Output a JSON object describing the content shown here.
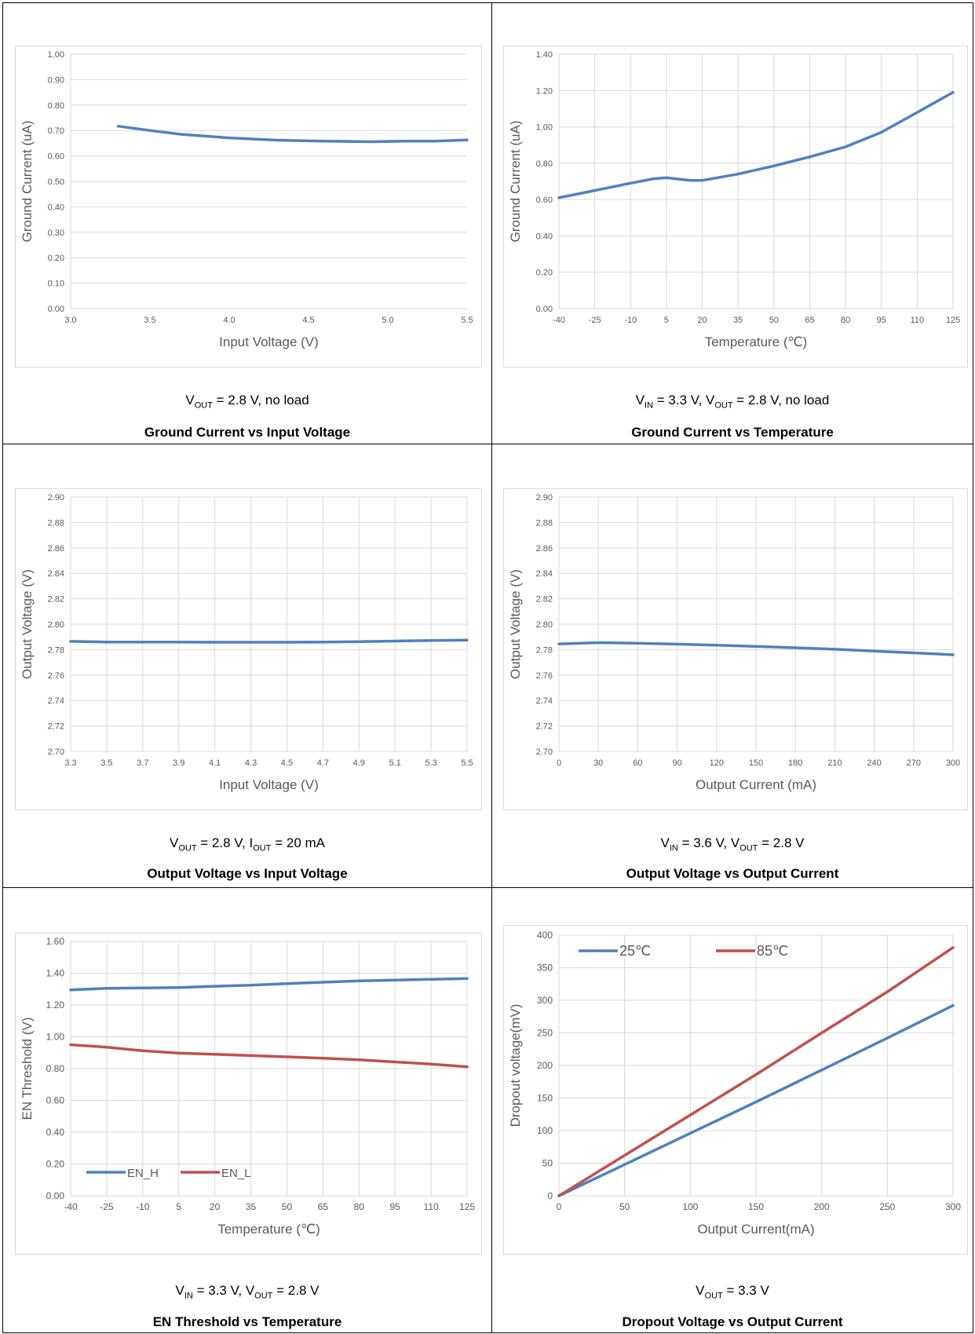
{
  "colors": {
    "blue": "#4f81bd",
    "red": "#c0504d",
    "grid": "#d9d9d9",
    "tick": "#595959"
  },
  "panels": [
    {
      "cond_parts": [
        {
          "t": "V"
        },
        {
          "t": "OUT",
          "sub": true
        },
        {
          "t": " = 2.8 V, no load"
        }
      ],
      "title": "Ground Current vs Input Voltage",
      "chart_data": {
        "type": "line",
        "xlabel": "Input Voltage (V)",
        "ylabel": "Ground Current (uA)",
        "x_ticks": [
          "3.0",
          "3.5",
          "4.0",
          "4.5",
          "5.0",
          "5.5"
        ],
        "y_ticks": [
          "0.00",
          "0.10",
          "0.20",
          "0.30",
          "0.40",
          "0.50",
          "0.60",
          "0.70",
          "0.80",
          "0.90",
          "1.00"
        ],
        "xlim": [
          3.0,
          5.5
        ],
        "ylim": [
          0,
          1.0
        ],
        "grid_y": true,
        "grid_x": false,
        "series": [
          {
            "color": "#4f81bd",
            "x": [
              3.3,
              3.5,
              3.7,
              4.0,
              4.3,
              4.6,
              4.9,
              5.1,
              5.3,
              5.5
            ],
            "y": [
              0.717,
              0.7,
              0.685,
              0.671,
              0.662,
              0.658,
              0.656,
              0.658,
              0.658,
              0.663
            ]
          }
        ]
      }
    },
    {
      "cond_parts": [
        {
          "t": "V"
        },
        {
          "t": "IN",
          "sub": true
        },
        {
          "t": " = 3.3 V, V"
        },
        {
          "t": "OUT",
          "sub": true
        },
        {
          "t": " = 2.8 V, no load"
        }
      ],
      "title": "Ground Current vs Temperature",
      "chart_data": {
        "type": "line",
        "xlabel": "Temperature (℃)",
        "ylabel": "Ground Current (uA)",
        "x_ticks": [
          "-40",
          "-25",
          "-10",
          "5",
          "20",
          "35",
          "50",
          "65",
          "80",
          "95",
          "110",
          "125"
        ],
        "y_ticks": [
          "0.00",
          "0.20",
          "0.40",
          "0.60",
          "0.80",
          "1.00",
          "1.20",
          "1.40"
        ],
        "xlim": [
          -40,
          125
        ],
        "ylim": [
          0,
          1.4
        ],
        "grid_y": true,
        "grid_x": true,
        "series": [
          {
            "color": "#4f81bd",
            "x": [
              -40,
              -25,
              -10,
              0,
              5,
              15,
              20,
              35,
              50,
              65,
              80,
              95,
              110,
              125
            ],
            "y": [
              0.61,
              0.65,
              0.69,
              0.715,
              0.72,
              0.705,
              0.705,
              0.74,
              0.785,
              0.835,
              0.89,
              0.97,
              1.08,
              1.19
            ]
          }
        ]
      }
    },
    {
      "cond_parts": [
        {
          "t": "V"
        },
        {
          "t": "OUT",
          "sub": true
        },
        {
          "t": " = 2.8 V, I"
        },
        {
          "t": "OUT",
          "sub": true
        },
        {
          "t": " = 20 mA"
        }
      ],
      "title": "Output Voltage vs Input Voltage",
      "chart_data": {
        "type": "line",
        "xlabel": "Input Voltage (V)",
        "ylabel": "Output Voltage (V)",
        "x_ticks": [
          "3.3",
          "3.5",
          "3.7",
          "3.9",
          "4.1",
          "4.3",
          "4.5",
          "4.7",
          "4.9",
          "5.1",
          "5.3",
          "5.5"
        ],
        "y_ticks": [
          "2.70",
          "2.72",
          "2.74",
          "2.76",
          "2.78",
          "2.80",
          "2.82",
          "2.84",
          "2.86",
          "2.88",
          "2.90"
        ],
        "xlim": [
          3.3,
          5.5
        ],
        "ylim": [
          2.7,
          2.9
        ],
        "grid_y": true,
        "grid_x": true,
        "series": [
          {
            "color": "#4f81bd",
            "x": [
              3.3,
              3.5,
              3.7,
              3.9,
              4.1,
              4.3,
              4.5,
              4.7,
              4.9,
              5.1,
              5.3,
              5.5
            ],
            "y": [
              2.7865,
              2.786,
              2.786,
              2.786,
              2.7858,
              2.7858,
              2.7858,
              2.786,
              2.7863,
              2.7867,
              2.7872,
              2.7875
            ]
          }
        ]
      }
    },
    {
      "cond_parts": [
        {
          "t": "V"
        },
        {
          "t": "IN",
          "sub": true
        },
        {
          "t": " = 3.6 V, V"
        },
        {
          "t": "OUT",
          "sub": true
        },
        {
          "t": " = 2.8 V"
        }
      ],
      "title": "Output Voltage vs Output Current",
      "chart_data": {
        "type": "line",
        "xlabel": "Output Current (mA)",
        "ylabel": "Output Voltage (V)",
        "x_ticks": [
          "0",
          "30",
          "60",
          "90",
          "120",
          "150",
          "180",
          "210",
          "240",
          "270",
          "300"
        ],
        "y_ticks": [
          "2.70",
          "2.72",
          "2.74",
          "2.76",
          "2.78",
          "2.80",
          "2.82",
          "2.84",
          "2.86",
          "2.88",
          "2.90"
        ],
        "xlim": [
          0,
          300
        ],
        "ylim": [
          2.7,
          2.9
        ],
        "grid_y": true,
        "grid_x": true,
        "series": [
          {
            "color": "#4f81bd",
            "x": [
              0,
              30,
              60,
              90,
              120,
              150,
              180,
              210,
              240,
              270,
              300
            ],
            "y": [
              2.7845,
              2.7855,
              2.785,
              2.7843,
              2.7835,
              2.7825,
              2.7815,
              2.7803,
              2.7788,
              2.7775,
              2.776
            ]
          }
        ]
      }
    },
    {
      "cond_parts": [
        {
          "t": "V"
        },
        {
          "t": "IN",
          "sub": true
        },
        {
          "t": " = 3.3 V, V"
        },
        {
          "t": "OUT",
          "sub": true
        },
        {
          "t": " = 2.8 V"
        }
      ],
      "title": "EN Threshold vs Temperature",
      "chart_data": {
        "type": "line",
        "xlabel": "Temperature (℃)",
        "ylabel": "EN Threshold (V)",
        "x_ticks": [
          "-40",
          "-25",
          "-10",
          "5",
          "20",
          "35",
          "50",
          "65",
          "80",
          "95",
          "110",
          "125"
        ],
        "y_ticks": [
          "0.00",
          "0.20",
          "0.40",
          "0.60",
          "0.80",
          "1.00",
          "1.20",
          "1.40",
          "1.60"
        ],
        "xlim": [
          -40,
          125
        ],
        "ylim": [
          0,
          1.6
        ],
        "grid_y": true,
        "grid_x": true,
        "legend": "bottom-left",
        "series": [
          {
            "name": "EN_H",
            "color": "#4f81bd",
            "x": [
              -40,
              -25,
              -10,
              5,
              20,
              35,
              50,
              65,
              80,
              95,
              110,
              125
            ],
            "y": [
              1.295,
              1.305,
              1.307,
              1.31,
              1.318,
              1.325,
              1.335,
              1.343,
              1.352,
              1.357,
              1.362,
              1.367
            ]
          },
          {
            "name": "EN_L",
            "color": "#c0504d",
            "x": [
              -40,
              -25,
              -10,
              5,
              20,
              35,
              50,
              65,
              80,
              95,
              110,
              125
            ],
            "y": [
              0.95,
              0.935,
              0.912,
              0.898,
              0.89,
              0.882,
              0.874,
              0.865,
              0.856,
              0.842,
              0.828,
              0.812
            ]
          }
        ]
      }
    },
    {
      "cond_parts": [
        {
          "t": "V"
        },
        {
          "t": "OUT",
          "sub": true
        },
        {
          "t": " = 3.3 V"
        }
      ],
      "title": "Dropout Voltage vs Output Current",
      "chart_data": {
        "type": "line",
        "xlabel": "Output Current(mA)",
        "ylabel": "Dropout voltage(mV)",
        "x_ticks": [
          "0",
          "50",
          "100",
          "150",
          "200",
          "250",
          "300"
        ],
        "y_ticks": [
          "0",
          "50",
          "100",
          "150",
          "200",
          "250",
          "300",
          "350",
          "400"
        ],
        "xlim": [
          0,
          300
        ],
        "ylim": [
          0,
          400
        ],
        "grid_y": true,
        "grid_x": true,
        "legend": "top-left",
        "series": [
          {
            "name": "25℃",
            "color": "#4f81bd",
            "x": [
              0,
              50,
              100,
              150,
              200,
              250,
              300
            ],
            "y": [
              0,
              48,
              96,
              144,
              193,
              242,
              292
            ]
          },
          {
            "name": "85℃",
            "color": "#c0504d",
            "x": [
              0,
              50,
              100,
              150,
              200,
              250,
              300
            ],
            "y": [
              0,
              62,
              124,
              186,
              250,
              313,
              381
            ]
          }
        ]
      }
    }
  ]
}
